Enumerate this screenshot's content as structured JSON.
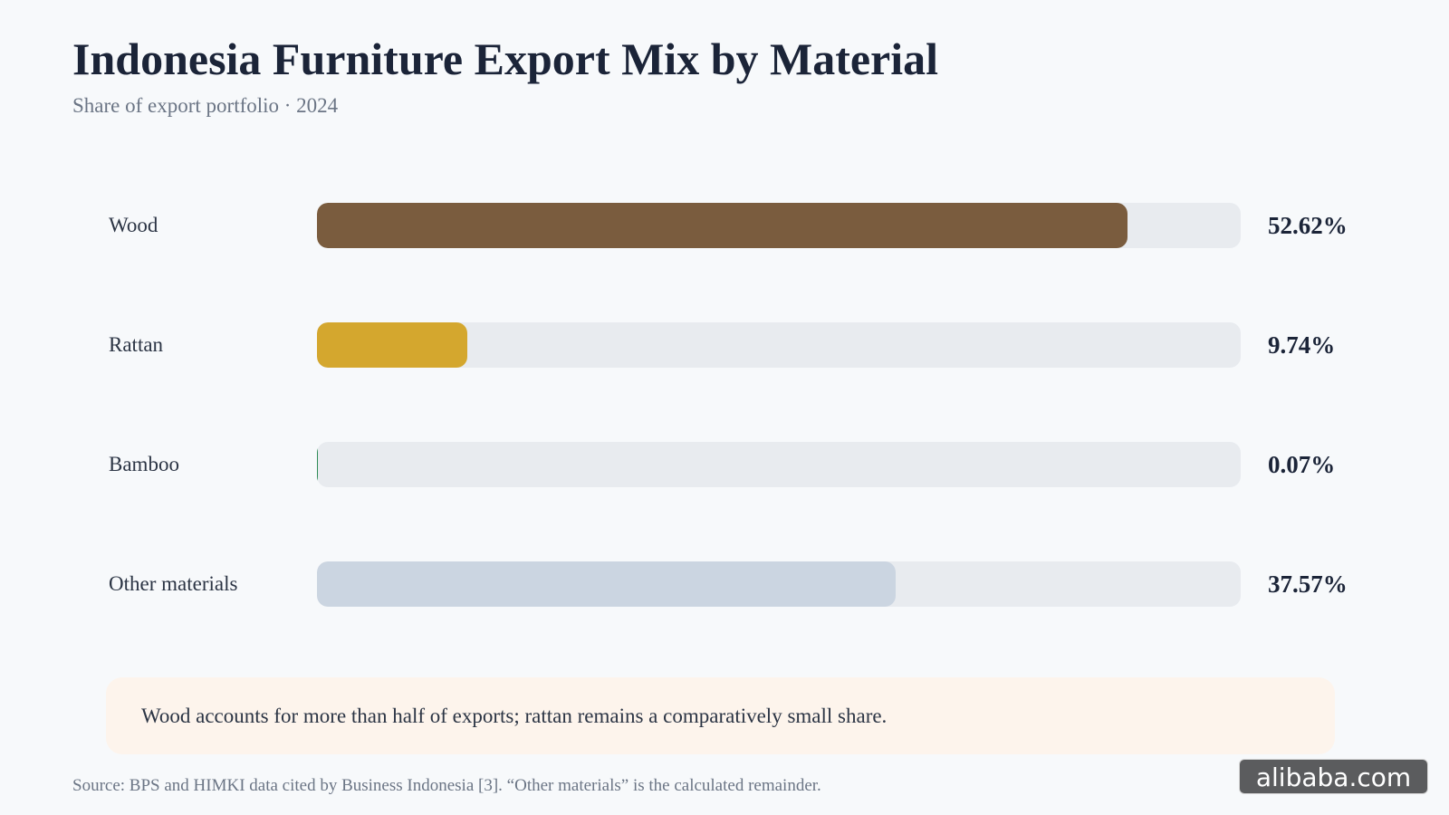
{
  "title": "Indonesia Furniture Export Mix by Material",
  "subtitle": "Share of export portfolio · 2024",
  "chart_data": {
    "type": "bar",
    "orientation": "horizontal",
    "title": "Indonesia Furniture Export Mix by Material",
    "subtitle": "Share of export portfolio · 2024",
    "categories": [
      "Wood",
      "Rattan",
      "Bamboo",
      "Other materials"
    ],
    "values": [
      52.62,
      9.74,
      0.07,
      37.57
    ],
    "value_labels": [
      "52.62%",
      "9.74%",
      "0.07%",
      "37.57%"
    ],
    "xlim": [
      0,
      60
    ],
    "unit": "%",
    "colors": [
      "#7a5c3e",
      "#d4a72e",
      "#2e8b57",
      "#cbd5e1"
    ],
    "track_color": "#e8ebef",
    "grid": false
  },
  "note": "Wood accounts for more than half of exports; rattan remains a comparatively small share.",
  "source": "Source: BPS and HIMKI data cited by Business Indonesia [3]. “Other materials” is the calculated remainder.",
  "watermark": "alibaba.com"
}
